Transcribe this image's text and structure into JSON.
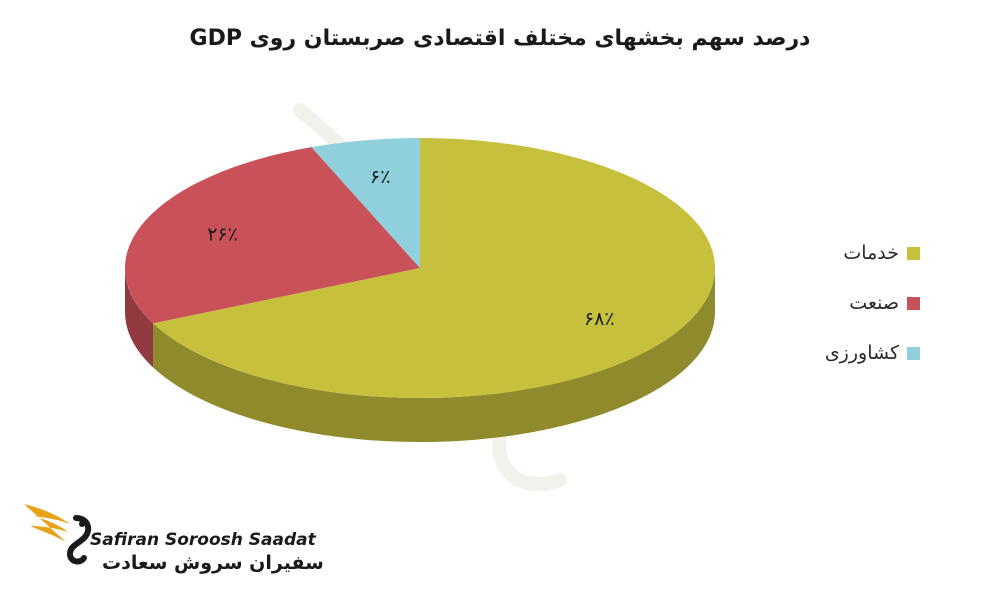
{
  "chart_data": {
    "type": "pie",
    "title": "درصد سهم بخشهای مختلف اقتصادی صربستان روی GDP",
    "categories": [
      "خدمات",
      "صنعت",
      "کشاورزی"
    ],
    "values": [
      68,
      26,
      6
    ],
    "data_labels": [
      "۶۸٪",
      "۲۶٪",
      "۶٪"
    ],
    "colors": [
      "#c7c03d",
      "#c9525a",
      "#8fd0dc"
    ],
    "legend_position": "right",
    "three_d": true
  },
  "logo": {
    "latin": "Safiran Soroosh Saadat",
    "persian": "سفیران سروش سعادت",
    "icon": "swan-wing-logo-icon"
  }
}
